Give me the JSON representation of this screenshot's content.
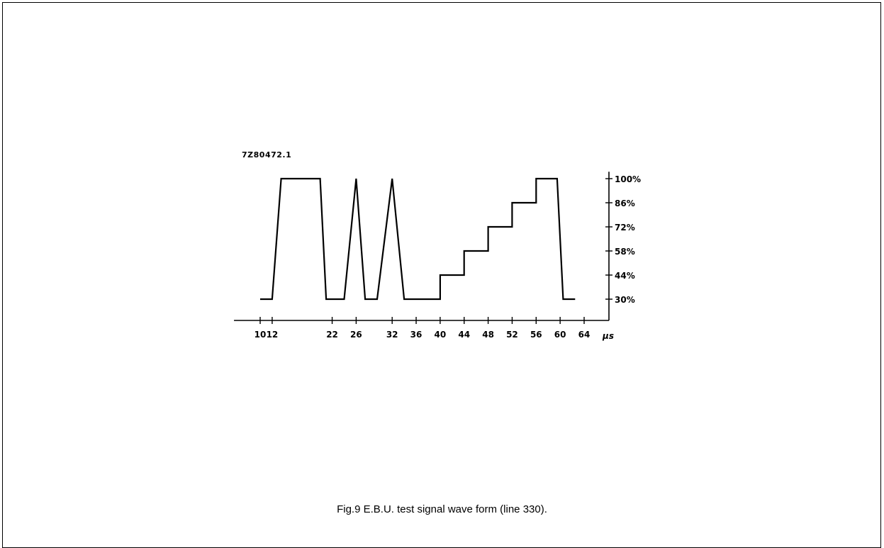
{
  "figure": {
    "drawing_id": "7Z80472.1",
    "caption": "Fig.9  E.B.U. test signal wave form (line 330)."
  },
  "chart_data": {
    "type": "line",
    "title": "",
    "xlabel": "",
    "ylabel": "",
    "x_unit": "µs",
    "x_ticks": [
      10,
      12,
      22,
      26,
      32,
      36,
      40,
      44,
      48,
      52,
      56,
      60,
      64
    ],
    "x_tick_labels": [
      "10",
      "12",
      "22",
      "26",
      "32",
      "36",
      "40",
      "44",
      "48",
      "52",
      "56",
      "60",
      "64"
    ],
    "y_ticks": [
      30,
      44,
      58,
      72,
      86,
      100
    ],
    "y_tick_labels": [
      "30%",
      "44%",
      "58%",
      "72%",
      "86%",
      "100%"
    ],
    "xlim": [
      8,
      65
    ],
    "ylim": [
      15,
      104
    ],
    "grid": false,
    "series": [
      {
        "x": [
          10,
          12,
          13.5,
          20,
          21,
          24,
          26,
          27.5,
          29.5,
          32,
          34,
          38,
          40,
          40,
          44,
          44,
          48,
          48,
          52,
          52,
          56,
          56,
          59.5,
          60.5,
          62.5
        ],
        "y": [
          30,
          30,
          100,
          100,
          30,
          30,
          100,
          30,
          30,
          100,
          30,
          30,
          30,
          44,
          44,
          58,
          58,
          72,
          72,
          86,
          86,
          100,
          100,
          30,
          30
        ]
      }
    ]
  }
}
